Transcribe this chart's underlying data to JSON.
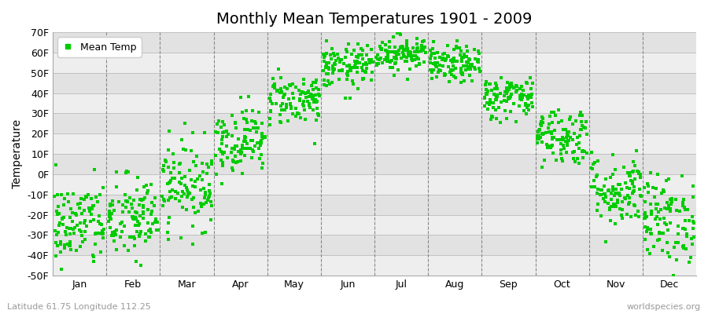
{
  "title": "Monthly Mean Temperatures 1901 - 2009",
  "ylabel": "Temperature",
  "bottom_left_label": "Latitude 61.75 Longitude 112.25",
  "bottom_right_label": "worldspecies.org",
  "legend_label": "Mean Temp",
  "dot_color": "#00CC00",
  "background_color": "#FFFFFF",
  "plot_bg_color": "#EEEEEE",
  "band_color_light": "#EEEEEE",
  "band_color_dark": "#E2E2E2",
  "ylim": [
    -50,
    70
  ],
  "yticks": [
    -50,
    -40,
    -30,
    -20,
    -10,
    0,
    10,
    20,
    30,
    40,
    50,
    60,
    70
  ],
  "months": [
    "Jan",
    "Feb",
    "Mar",
    "Apr",
    "May",
    "Jun",
    "Jul",
    "Aug",
    "Sep",
    "Oct",
    "Nov",
    "Dec"
  ],
  "month_means": [
    -25,
    -22,
    -5,
    17,
    37,
    53,
    60,
    54,
    38,
    19,
    -8,
    -22
  ],
  "month_spreads": [
    12,
    12,
    12,
    9,
    7,
    6,
    5,
    5,
    6,
    8,
    10,
    12
  ],
  "n_points": 109,
  "seed": 42
}
